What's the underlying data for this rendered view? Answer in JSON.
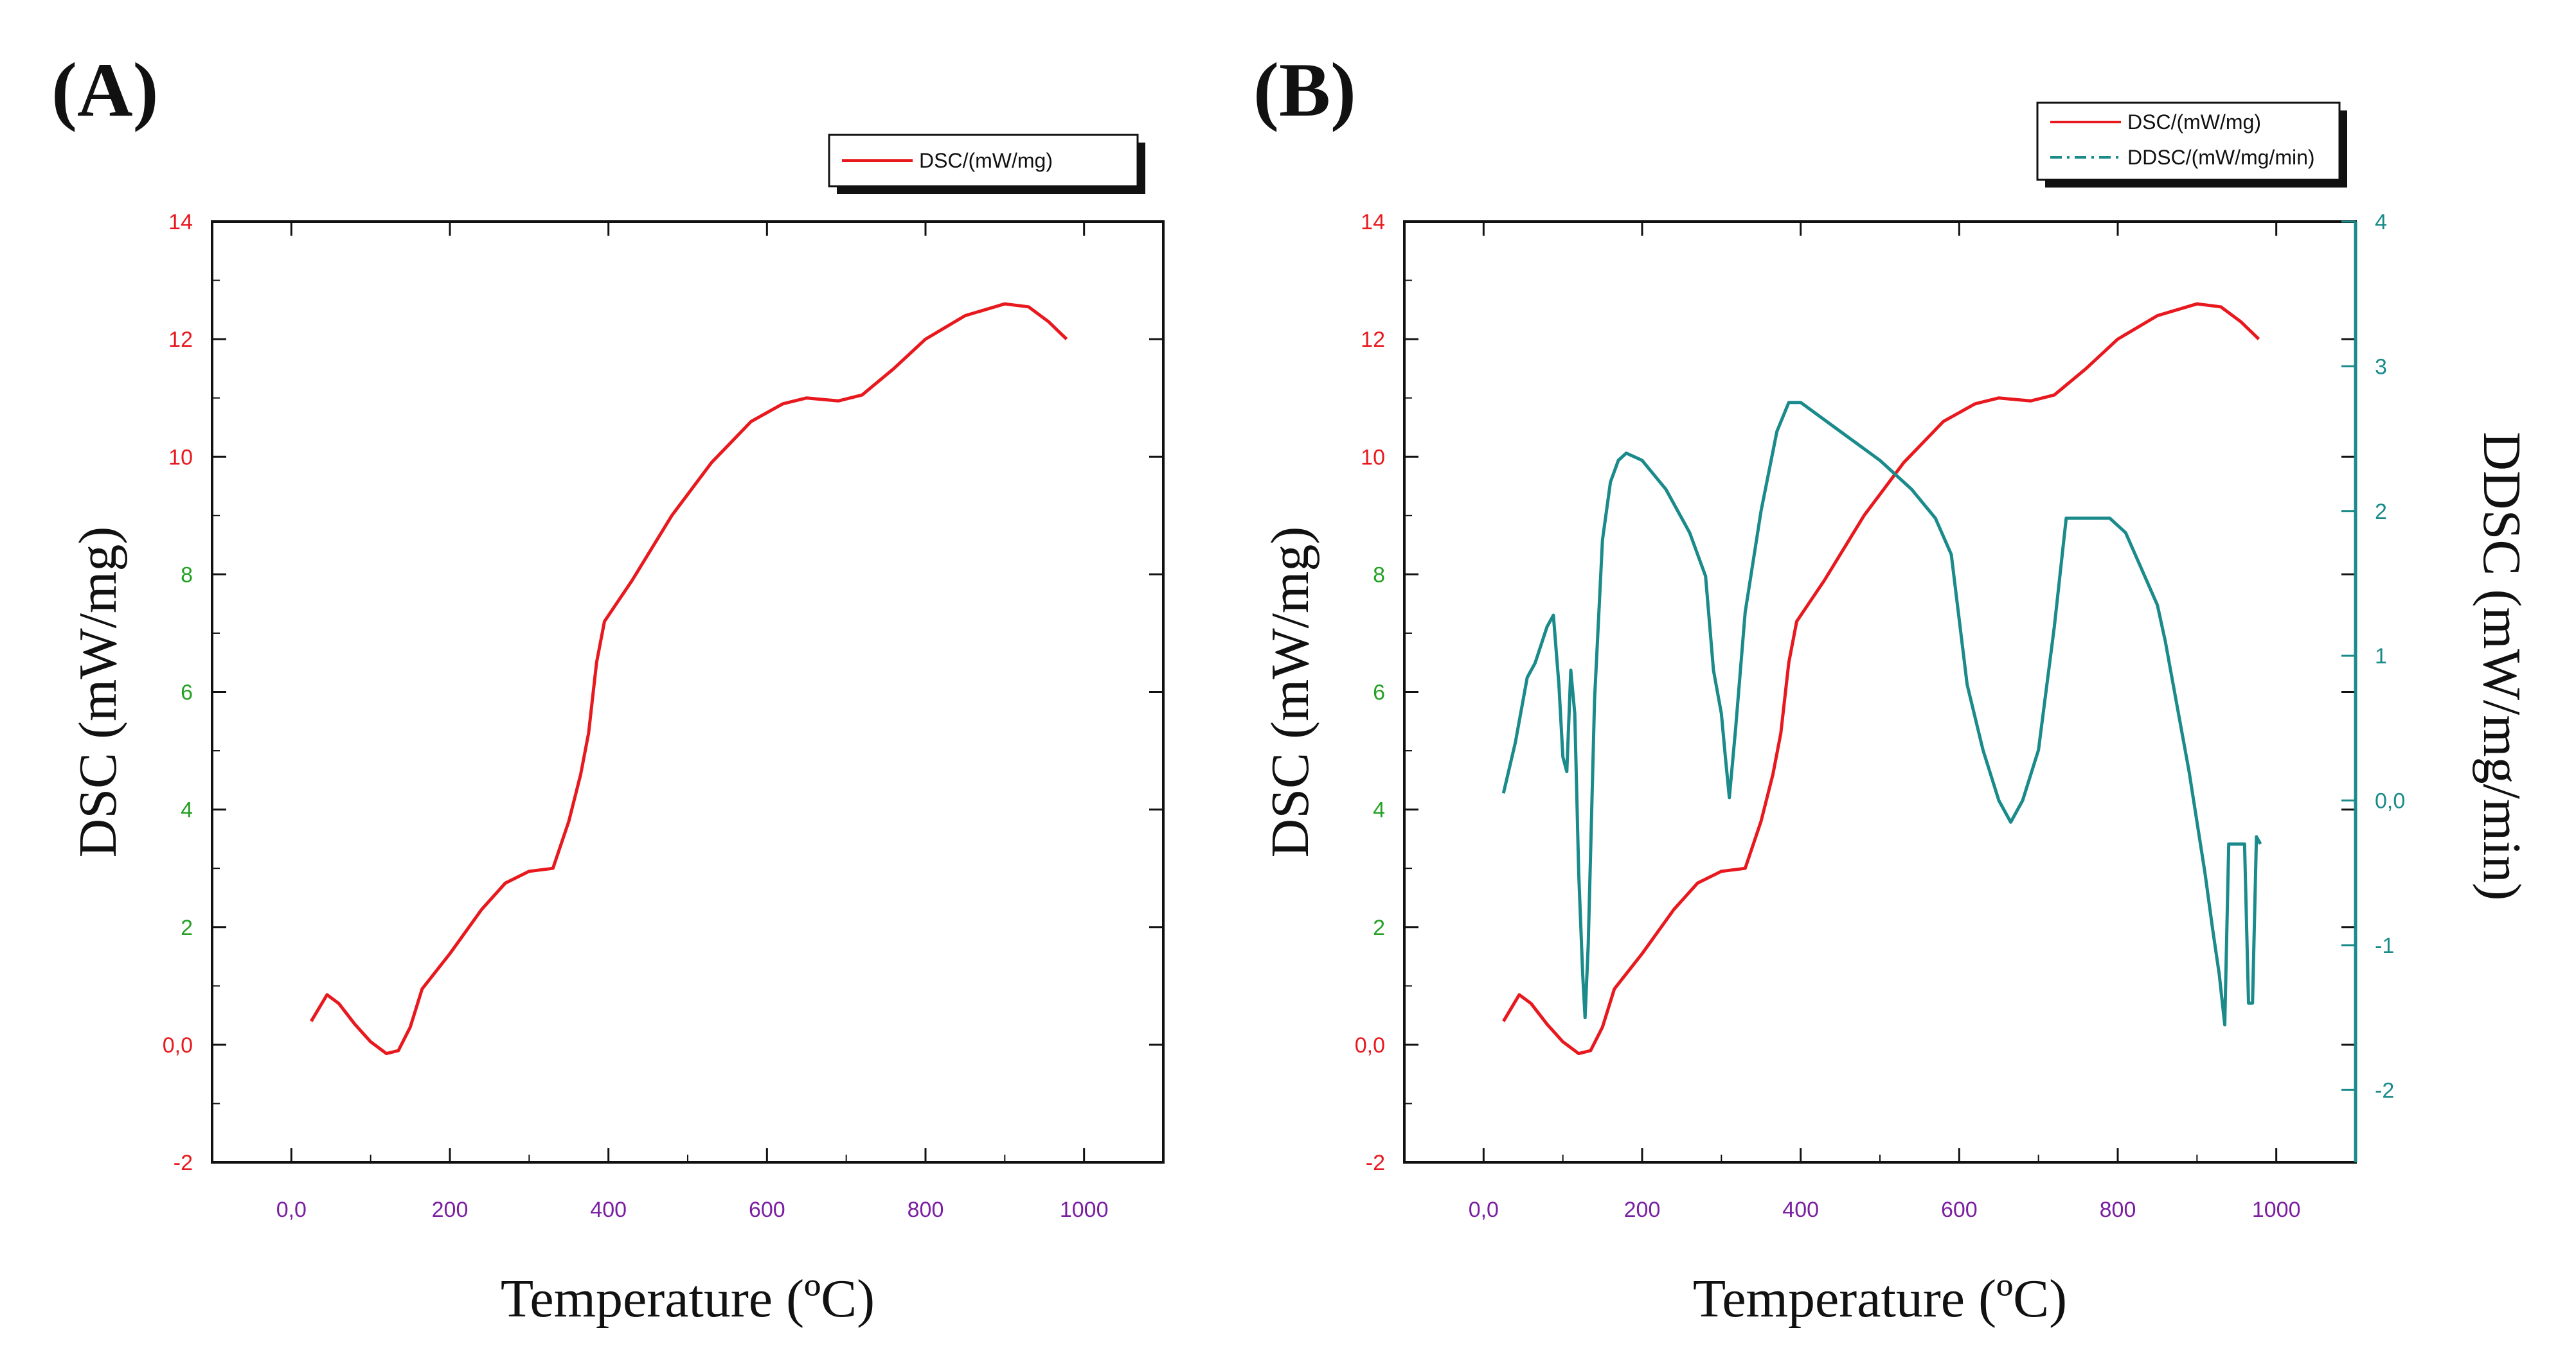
{
  "chart_data": [
    {
      "type": "line",
      "panel_label": "(A)",
      "xlabel": "Temperature (ºC)",
      "ylabel": "DSC (mW/mg)",
      "xlim": [
        -100,
        1100
      ],
      "ylim": [
        -2,
        14
      ],
      "x_ticks": [
        0,
        200,
        400,
        600,
        800,
        1000
      ],
      "x_tick_labels": [
        "0,0",
        "200",
        "400",
        "600",
        "800",
        "1000"
      ],
      "y_ticks": [
        -2,
        0,
        2,
        4,
        6,
        8,
        10,
        12,
        14
      ],
      "y_tick_labels": [
        "-2",
        "0,0",
        "2",
        "4",
        "6",
        "8",
        "10",
        "12",
        "14"
      ],
      "legend_position": "top-right",
      "grid": false,
      "series": [
        {
          "name": "DSC/(mW/mg)",
          "color": "#e8191e",
          "axis": "left",
          "points": [
            [
              25,
              0.4
            ],
            [
              45,
              0.85
            ],
            [
              60,
              0.7
            ],
            [
              80,
              0.35
            ],
            [
              100,
              0.05
            ],
            [
              120,
              -0.15
            ],
            [
              135,
              -0.1
            ],
            [
              150,
              0.3
            ],
            [
              165,
              0.95
            ],
            [
              200,
              1.55
            ],
            [
              240,
              2.3
            ],
            [
              270,
              2.75
            ],
            [
              300,
              2.95
            ],
            [
              330,
              3.0
            ],
            [
              350,
              3.8
            ],
            [
              365,
              4.6
            ],
            [
              375,
              5.3
            ],
            [
              385,
              6.5
            ],
            [
              395,
              7.2
            ],
            [
              430,
              7.9
            ],
            [
              480,
              9.0
            ],
            [
              530,
              9.9
            ],
            [
              580,
              10.6
            ],
            [
              620,
              10.9
            ],
            [
              650,
              11.0
            ],
            [
              690,
              10.95
            ],
            [
              720,
              11.05
            ],
            [
              760,
              11.5
            ],
            [
              800,
              12.0
            ],
            [
              850,
              12.4
            ],
            [
              900,
              12.6
            ],
            [
              930,
              12.55
            ],
            [
              955,
              12.3
            ],
            [
              978,
              12.0
            ]
          ]
        }
      ]
    },
    {
      "type": "line",
      "panel_label": "(B)",
      "xlabel": "Temperature (ºC)",
      "ylabel": "DSC (mW/mg)",
      "y2label": "DDSC (mW/mg/min)",
      "xlim": [
        -100,
        1100
      ],
      "ylim": [
        -2,
        14
      ],
      "y2lim": [
        -2.5,
        4
      ],
      "x_ticks": [
        0,
        200,
        400,
        600,
        800,
        1000
      ],
      "x_tick_labels": [
        "0,0",
        "200",
        "400",
        "600",
        "800",
        "1000"
      ],
      "y_ticks": [
        -2,
        0,
        2,
        4,
        6,
        8,
        10,
        12,
        14
      ],
      "y_tick_labels": [
        "-2",
        "0,0",
        "2",
        "4",
        "6",
        "8",
        "10",
        "12",
        "14"
      ],
      "y2_ticks": [
        -2,
        -1,
        0,
        1,
        2,
        3,
        4
      ],
      "y2_tick_labels": [
        "-2",
        "-1",
        "0,0",
        "1",
        "2",
        "3",
        "4"
      ],
      "legend_position": "top-right",
      "grid": false,
      "series": [
        {
          "name": "DSC/(mW/mg)",
          "color": "#e8191e",
          "axis": "left",
          "points": [
            [
              25,
              0.4
            ],
            [
              45,
              0.85
            ],
            [
              60,
              0.7
            ],
            [
              80,
              0.35
            ],
            [
              100,
              0.05
            ],
            [
              120,
              -0.15
            ],
            [
              135,
              -0.1
            ],
            [
              150,
              0.3
            ],
            [
              165,
              0.95
            ],
            [
              200,
              1.55
            ],
            [
              240,
              2.3
            ],
            [
              270,
              2.75
            ],
            [
              300,
              2.95
            ],
            [
              330,
              3.0
            ],
            [
              350,
              3.8
            ],
            [
              365,
              4.6
            ],
            [
              375,
              5.3
            ],
            [
              385,
              6.5
            ],
            [
              395,
              7.2
            ],
            [
              430,
              7.9
            ],
            [
              480,
              9.0
            ],
            [
              530,
              9.9
            ],
            [
              580,
              10.6
            ],
            [
              620,
              10.9
            ],
            [
              650,
              11.0
            ],
            [
              690,
              10.95
            ],
            [
              720,
              11.05
            ],
            [
              760,
              11.5
            ],
            [
              800,
              12.0
            ],
            [
              850,
              12.4
            ],
            [
              900,
              12.6
            ],
            [
              930,
              12.55
            ],
            [
              955,
              12.3
            ],
            [
              978,
              12.0
            ]
          ]
        },
        {
          "name": "DDSC/(mW/mg/min)",
          "color": "#1a8a8a",
          "axis": "right",
          "points": [
            [
              25,
              0.05
            ],
            [
              40,
              0.4
            ],
            [
              55,
              0.85
            ],
            [
              65,
              0.95
            ],
            [
              80,
              1.2
            ],
            [
              88,
              1.28
            ],
            [
              95,
              0.8
            ],
            [
              100,
              0.3
            ],
            [
              105,
              0.2
            ],
            [
              110,
              0.9
            ],
            [
              115,
              0.6
            ],
            [
              120,
              -0.5
            ],
            [
              125,
              -1.2
            ],
            [
              128,
              -1.5
            ],
            [
              132,
              -1.0
            ],
            [
              140,
              0.7
            ],
            [
              150,
              1.8
            ],
            [
              160,
              2.2
            ],
            [
              170,
              2.35
            ],
            [
              180,
              2.4
            ],
            [
              200,
              2.35
            ],
            [
              230,
              2.15
            ],
            [
              260,
              1.85
            ],
            [
              280,
              1.55
            ],
            [
              290,
              0.9
            ],
            [
              300,
              0.6
            ],
            [
              305,
              0.3
            ],
            [
              310,
              0.02
            ],
            [
              318,
              0.5
            ],
            [
              330,
              1.3
            ],
            [
              350,
              2.0
            ],
            [
              370,
              2.55
            ],
            [
              385,
              2.75
            ],
            [
              400,
              2.75
            ],
            [
              450,
              2.55
            ],
            [
              500,
              2.35
            ],
            [
              540,
              2.15
            ],
            [
              570,
              1.95
            ],
            [
              590,
              1.7
            ],
            [
              610,
              0.8
            ],
            [
              630,
              0.35
            ],
            [
              650,
              0.0
            ],
            [
              665,
              -0.15
            ],
            [
              680,
              0.0
            ],
            [
              700,
              0.35
            ],
            [
              720,
              1.2
            ],
            [
              735,
              1.95
            ],
            [
              760,
              1.95
            ],
            [
              790,
              1.95
            ],
            [
              810,
              1.85
            ],
            [
              830,
              1.6
            ],
            [
              850,
              1.35
            ],
            [
              860,
              1.1
            ],
            [
              870,
              0.8
            ],
            [
              890,
              0.2
            ],
            [
              910,
              -0.5
            ],
            [
              920,
              -0.9
            ],
            [
              928,
              -1.2
            ],
            [
              935,
              -1.55
            ],
            [
              940,
              -0.3
            ],
            [
              950,
              -0.3
            ],
            [
              960,
              -0.3
            ],
            [
              965,
              -1.4
            ],
            [
              970,
              -1.4
            ],
            [
              975,
              -0.25
            ],
            [
              980,
              -0.3
            ]
          ]
        }
      ]
    }
  ]
}
